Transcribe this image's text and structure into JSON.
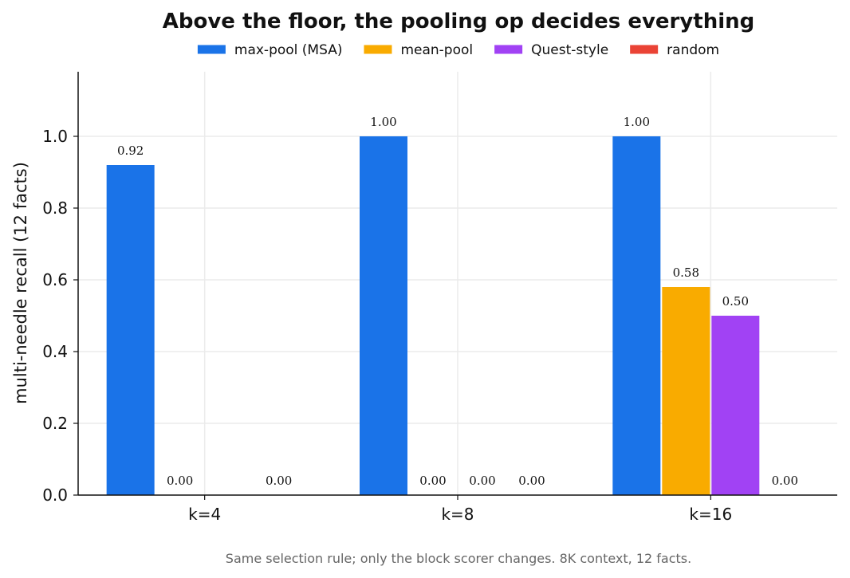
{
  "chart_data": {
    "type": "bar",
    "title": "Above the floor, the pooling op decides everything",
    "xlabel": "",
    "ylabel": "multi-needle recall (12 facts)",
    "categories": [
      "k=4",
      "k=8",
      "k=16"
    ],
    "series": [
      {
        "name": "max-pool (MSA)",
        "color": "#1a73e8",
        "values": [
          0.92,
          1.0,
          1.0
        ]
      },
      {
        "name": "mean-pool",
        "color": "#f9ab00",
        "values": [
          0.0,
          0.0,
          0.58
        ]
      },
      {
        "name": "Quest-style",
        "color": "#a142f4",
        "values": [
          0.0,
          0.0,
          0.5
        ]
      },
      {
        "name": "random",
        "color": "#ea4335",
        "values": [
          0.0,
          0.0,
          0.0
        ]
      }
    ],
    "data_labels": [
      [
        "0.92",
        "1.00",
        "1.00"
      ],
      [
        "0.00",
        "0.00",
        "0.58"
      ],
      [
        null,
        "0.00",
        "0.50"
      ],
      [
        "0.00",
        "0.00",
        "0.00"
      ]
    ],
    "yticks": [
      "0.0",
      "0.2",
      "0.4",
      "0.6",
      "0.8",
      "1.0"
    ],
    "ytick_values": [
      0,
      0.2,
      0.4,
      0.6,
      0.8,
      1.0
    ],
    "ylim": [
      0,
      1.18
    ],
    "grid": true,
    "legend_position": "top-center",
    "caption": "Same selection rule; only the block scorer changes. 8K context, 12 facts."
  }
}
